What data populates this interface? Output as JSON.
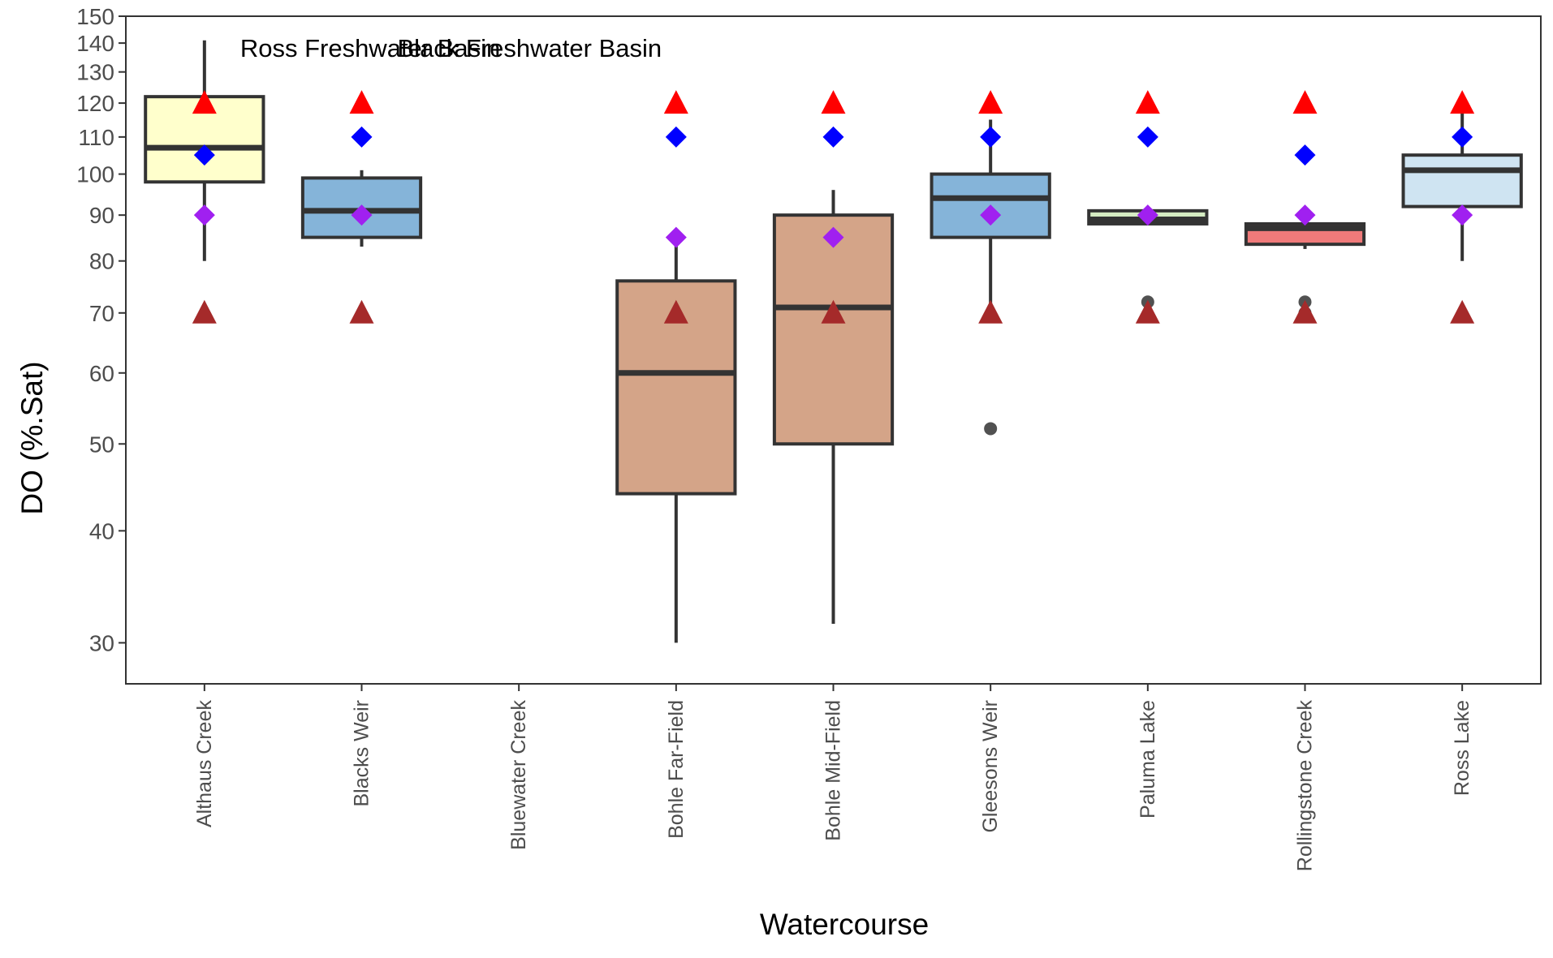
{
  "chart_data": {
    "type": "box",
    "title": "",
    "xlabel": "Watercourse",
    "ylabel": "DO (%.Sat)",
    "y_scale": "log",
    "ylim": [
      27,
      150
    ],
    "yticks": [
      30,
      40,
      50,
      60,
      70,
      80,
      90,
      100,
      110,
      120,
      130,
      140,
      150
    ],
    "grid": false,
    "categories": [
      "Althaus Creek",
      "Blacks Weir",
      "Bluewater Creek",
      "Bohle Far-Field",
      "Bohle Mid-Field",
      "Gleesons Weir",
      "Paluma Lake",
      "Rollingstone Creek",
      "Ross Lake"
    ],
    "annotations": [
      {
        "text": "Ross Freshwater Basin",
        "category": "Althaus Creek",
        "y": 138
      },
      {
        "text": "Black Freshwater Basin",
        "category": "Blacks Weir",
        "y": 138
      }
    ],
    "boxes": [
      {
        "category": "Althaus Creek",
        "color": "#ffffcc",
        "whisker_low": 80,
        "q1": 98,
        "median": 107,
        "q3": 122,
        "whisker_high": 141,
        "outliers": []
      },
      {
        "category": "Blacks Weir",
        "color": "#85b4d9",
        "whisker_low": 83,
        "q1": 85,
        "median": 91,
        "q3": 99,
        "whisker_high": 101,
        "outliers": []
      },
      {
        "category": "Bluewater Creek",
        "color": null,
        "outliers": []
      },
      {
        "category": "Bohle Far-Field",
        "color": "#d4a488",
        "whisker_low": 30,
        "q1": 44,
        "median": 60,
        "q3": 76,
        "whisker_high": 85,
        "outliers": []
      },
      {
        "category": "Bohle Mid-Field",
        "color": "#d4a488",
        "whisker_low": 31.5,
        "q1": 50,
        "median": 71,
        "q3": 90,
        "whisker_high": 96,
        "outliers": []
      },
      {
        "category": "Gleesons Weir",
        "color": "#85b4d9",
        "whisker_low": 70,
        "q1": 85,
        "median": 94,
        "q3": 100,
        "whisker_high": 115,
        "outliers": [
          52
        ]
      },
      {
        "category": "Paluma Lake",
        "color": "#d5ecc2",
        "whisker_low": 88,
        "q1": 88,
        "median": 89,
        "q3": 91,
        "whisker_high": 91,
        "outliers": [
          72
        ]
      },
      {
        "category": "Rollingstone Creek",
        "color": "#f07a7a",
        "whisker_low": 82.5,
        "q1": 83.5,
        "median": 87,
        "q3": 88,
        "whisker_high": 92,
        "outliers": [
          72,
          70
        ]
      },
      {
        "category": "Ross Lake",
        "color": "#cfe4f2",
        "whisker_low": 80,
        "q1": 92,
        "median": 101,
        "q3": 105,
        "whisker_high": 118,
        "outliers": []
      }
    ],
    "guideline_series": [
      {
        "marker": "triangle",
        "color": "#ff0000",
        "values": [
          120,
          120,
          null,
          120,
          120,
          120,
          120,
          120,
          120
        ]
      },
      {
        "marker": "triangle",
        "color": "#a52a2a",
        "values": [
          70,
          70,
          null,
          70,
          70,
          70,
          70,
          70,
          70
        ]
      },
      {
        "marker": "diamond",
        "color": "#0000ff",
        "values": [
          105,
          110,
          null,
          110,
          110,
          110,
          110,
          105,
          110
        ]
      },
      {
        "marker": "diamond",
        "color": "#a020f0",
        "values": [
          90,
          90,
          null,
          85,
          85,
          90,
          90,
          90,
          90
        ]
      }
    ],
    "colors": {
      "box_line": "#333333",
      "axis": "#333333",
      "outlier": "#333333"
    }
  }
}
